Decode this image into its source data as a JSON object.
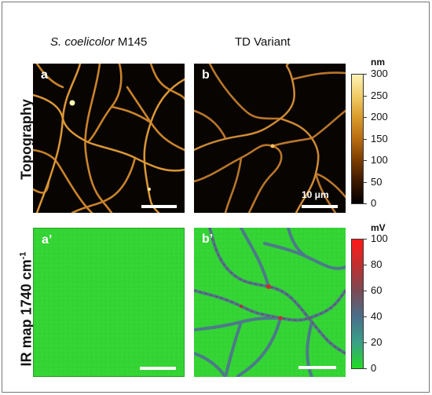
{
  "columns": {
    "left": {
      "italic": "S. coelicolor",
      "rest": " M145"
    },
    "right": {
      "text": "TD Variant"
    }
  },
  "rows": {
    "top": "Topography",
    "bottom_main": "IR map 1740 cm",
    "bottom_sup": "-1"
  },
  "panels": {
    "a": "a",
    "b": "b",
    "a_prime": "a’",
    "b_prime": "b’"
  },
  "scalebar_label": "10 μm",
  "colorbars": {
    "topography": {
      "unit": "nm",
      "ticks": [
        "300",
        "250",
        "200",
        "150",
        "100",
        "50",
        "0"
      ],
      "range": [
        0,
        300
      ],
      "colors": [
        "#000000",
        "#3a1800",
        "#7a3d00",
        "#b86c10",
        "#d99a2a",
        "#f0cc66",
        "#fdf3b5"
      ]
    },
    "ir": {
      "unit": "mV",
      "ticks": [
        "100",
        "80",
        "60",
        "40",
        "20",
        "0"
      ],
      "range": [
        0,
        100
      ],
      "colors": [
        "#22dd22",
        "#3aa088",
        "#4a6f8a",
        "#7a4a55",
        "#c03030",
        "#ff1a1a"
      ]
    }
  },
  "colors": {
    "ir_background": "#32d432",
    "afm_background": "#080402",
    "fiber": "#c9832a"
  }
}
